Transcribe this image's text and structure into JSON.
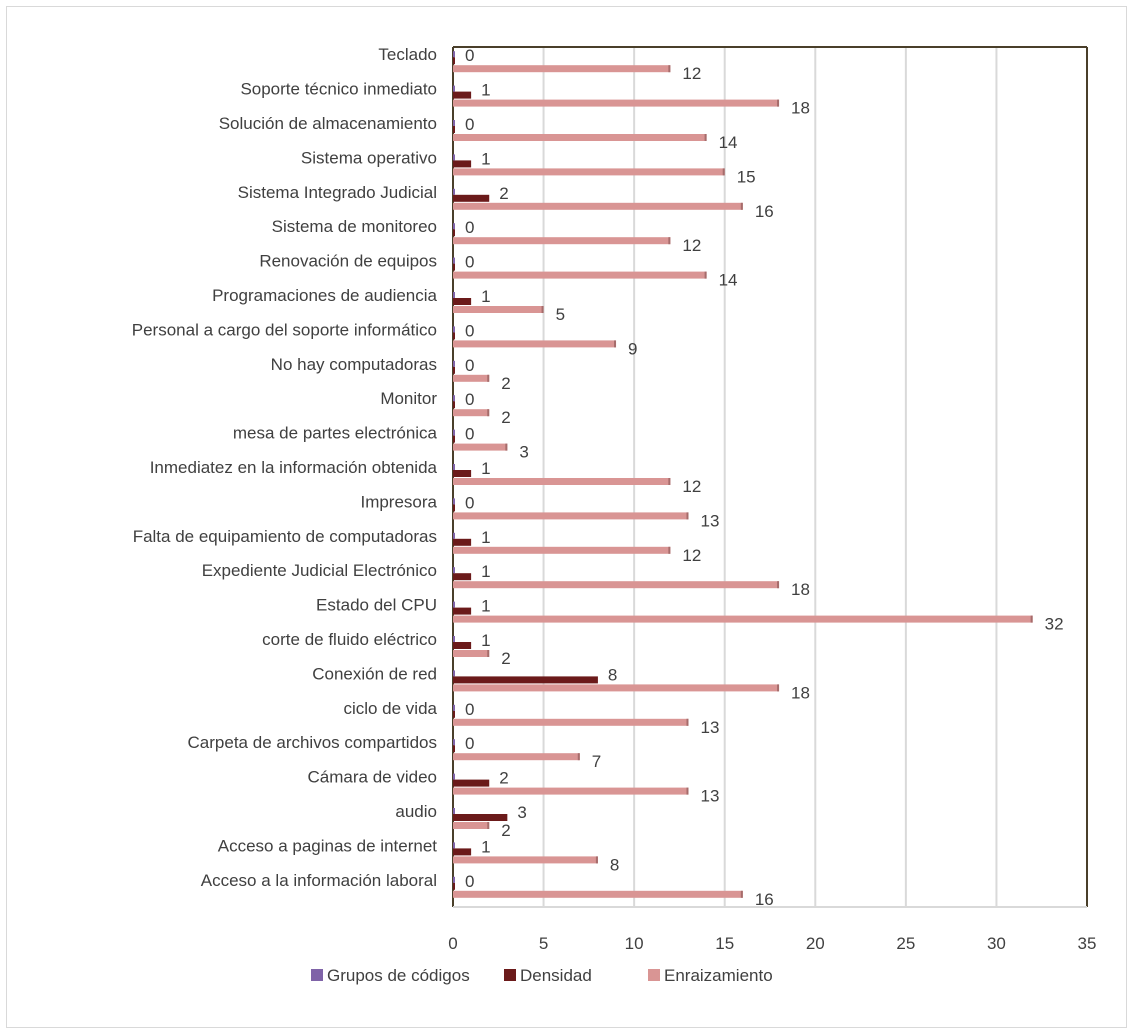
{
  "chart_data": {
    "type": "bar",
    "orientation": "horizontal",
    "categories": [
      "Teclado",
      "Soporte técnico inmediato",
      "Solución de almacenamiento",
      "Sistema operativo",
      "Sistema Integrado Judicial",
      "Sistema de monitoreo",
      "Renovación de equipos",
      "Programaciones de audiencia",
      "Personal a cargo del soporte informático",
      "No hay computadoras",
      "Monitor",
      "mesa de partes electrónica",
      "Inmediatez en la información obtenida",
      "Impresora",
      "Falta de equipamiento de computadoras",
      "Expediente Judicial Electrónico",
      "Estado del CPU",
      "corte de fluido eléctrico",
      "Conexión de red",
      "ciclo de vida",
      "Carpeta de archivos compartidos",
      "Cámara de video",
      "audio",
      "Acceso a paginas de internet",
      "Acceso a la información laboral"
    ],
    "series": [
      {
        "name": "Grupos de códigos",
        "color": "#7f63a8",
        "values": [
          0,
          0,
          0,
          0,
          0,
          0,
          0,
          0,
          0,
          0,
          0,
          0,
          0,
          0,
          0,
          0,
          0,
          0,
          0,
          0,
          0,
          0,
          0,
          0,
          0
        ]
      },
      {
        "name": "Densidad",
        "color": "#6b1a1a",
        "values": [
          0,
          1,
          0,
          1,
          2,
          0,
          0,
          1,
          0,
          0,
          0,
          0,
          1,
          0,
          1,
          1,
          1,
          1,
          8,
          0,
          0,
          2,
          3,
          1,
          0
        ]
      },
      {
        "name": "Enraizamiento",
        "color": "#d99594",
        "values": [
          12,
          18,
          14,
          15,
          16,
          12,
          14,
          5,
          9,
          2,
          2,
          3,
          12,
          13,
          12,
          18,
          32,
          2,
          18,
          13,
          7,
          13,
          2,
          8,
          16
        ]
      }
    ],
    "xlim": [
      0,
      35
    ],
    "xticks": [
      "0",
      "5",
      "10",
      "15",
      "20",
      "25",
      "30",
      "35"
    ],
    "grid": true,
    "legend_position": "bottom"
  }
}
